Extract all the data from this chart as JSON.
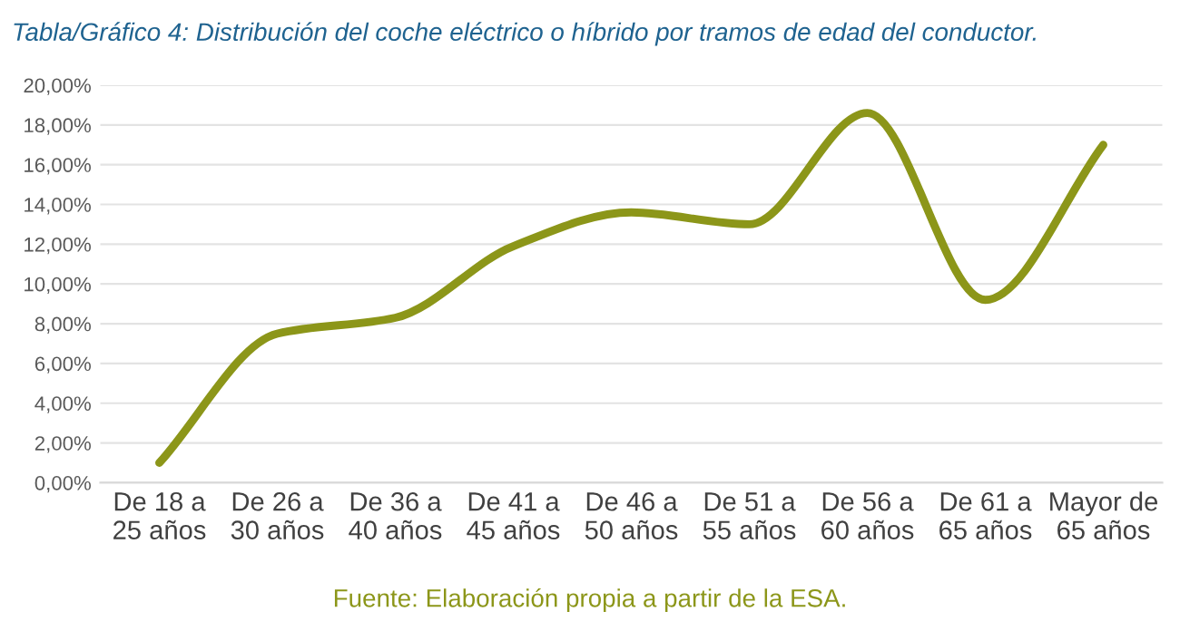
{
  "chart_data": {
    "type": "line",
    "title": "Tabla/Gráfico 4: Distribución del coche eléctrico o híbrido por tramos de edad del conductor.",
    "categories": [
      "De 18 a\n25 años",
      "De 26 a\n30 años",
      "De 36 a\n40 años",
      "De 41 a\n45 años",
      "De 46 a\n50 años",
      "De 51 a\n55 años",
      "De 56 a\n60 años",
      "De 61 a\n65 años",
      "Mayor de\n65 años"
    ],
    "series": [
      {
        "color": "#8c9619",
        "values": [
          1.0,
          7.5,
          8.3,
          11.9,
          13.6,
          13.0,
          18.6,
          9.2,
          17.0
        ]
      }
    ],
    "ylim": [
      0,
      20
    ],
    "yticks": [
      {
        "value": 0,
        "label": "0,00%"
      },
      {
        "value": 2,
        "label": "2,00%"
      },
      {
        "value": 4,
        "label": "4,00%"
      },
      {
        "value": 6,
        "label": "6,00%"
      },
      {
        "value": 8,
        "label": "8,00%"
      },
      {
        "value": 10,
        "label": "10,00%"
      },
      {
        "value": 12,
        "label": "12,00%"
      },
      {
        "value": 14,
        "label": "14,00%"
      },
      {
        "value": 16,
        "label": "16,00%"
      },
      {
        "value": 18,
        "label": "18,00%"
      },
      {
        "value": 20,
        "label": "20,00%"
      }
    ],
    "grid": "y",
    "marker": "none",
    "line_style": "solid",
    "annotations": [
      "Fuente: Elaboración propia a partir de la ESA."
    ]
  }
}
